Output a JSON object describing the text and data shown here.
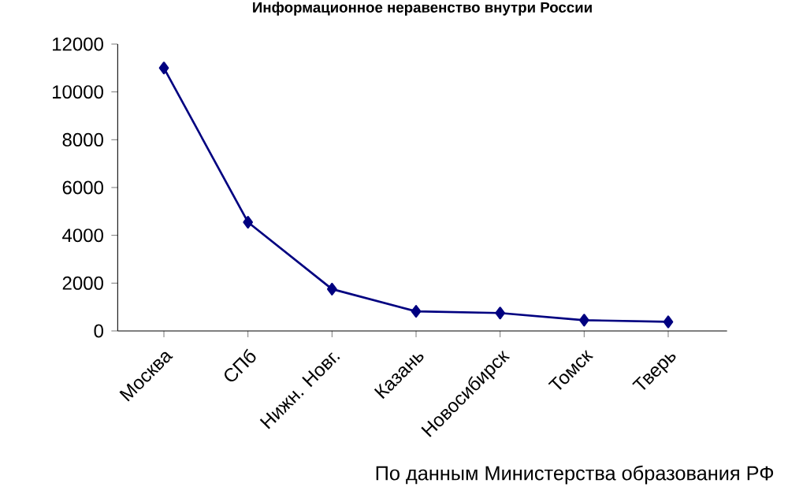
{
  "chart_data": {
    "type": "line",
    "title": "Информационное неравенство внутри России",
    "categories": [
      "Москва",
      "СПб",
      "Нижн. Новг.",
      "Казань",
      "Новосибирск",
      "Томск",
      "Тверь"
    ],
    "values": [
      11000,
      4550,
      1750,
      820,
      750,
      450,
      380
    ],
    "color": "#000080",
    "marker": "diamond",
    "line_style": "solid",
    "grid": false,
    "ylim": [
      0,
      12000
    ],
    "yticks": [
      0,
      2000,
      4000,
      6000,
      8000,
      10000,
      12000
    ],
    "annotations": [
      "По данным Министерства образования РФ"
    ]
  }
}
